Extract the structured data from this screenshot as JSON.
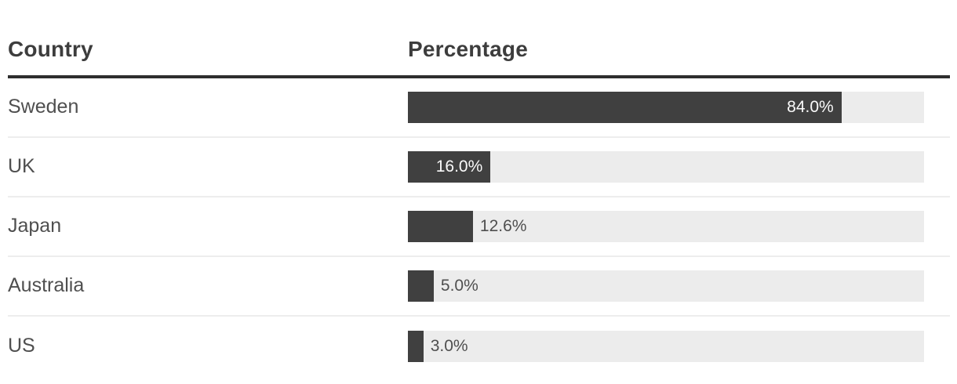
{
  "table": {
    "columns": [
      "Country",
      "Percentage"
    ]
  },
  "chart_data": {
    "type": "bar",
    "orientation": "horizontal",
    "title": "",
    "xlabel": "Percentage",
    "ylabel": "Country",
    "xlim": [
      0,
      100
    ],
    "grid": false,
    "legend": "none",
    "categories": [
      "Sweden",
      "UK",
      "Japan",
      "Australia",
      "US"
    ],
    "values": [
      84.0,
      16.0,
      12.6,
      5.0,
      3.0
    ],
    "labels": [
      "84.0%",
      "16.0%",
      "12.6%",
      "5.0%",
      "3.0%"
    ],
    "label_inside": [
      true,
      true,
      false,
      false,
      false
    ],
    "colors": {
      "bar": "#404040",
      "track": "#ececec",
      "header_rule": "#2e2e2e",
      "header_text": "#3d3d3d",
      "row_text": "#4f4f4f",
      "separator": "#ededed",
      "bar_label_inside": "#fafafa",
      "bar_label_outside": "#4f4f4f"
    }
  }
}
